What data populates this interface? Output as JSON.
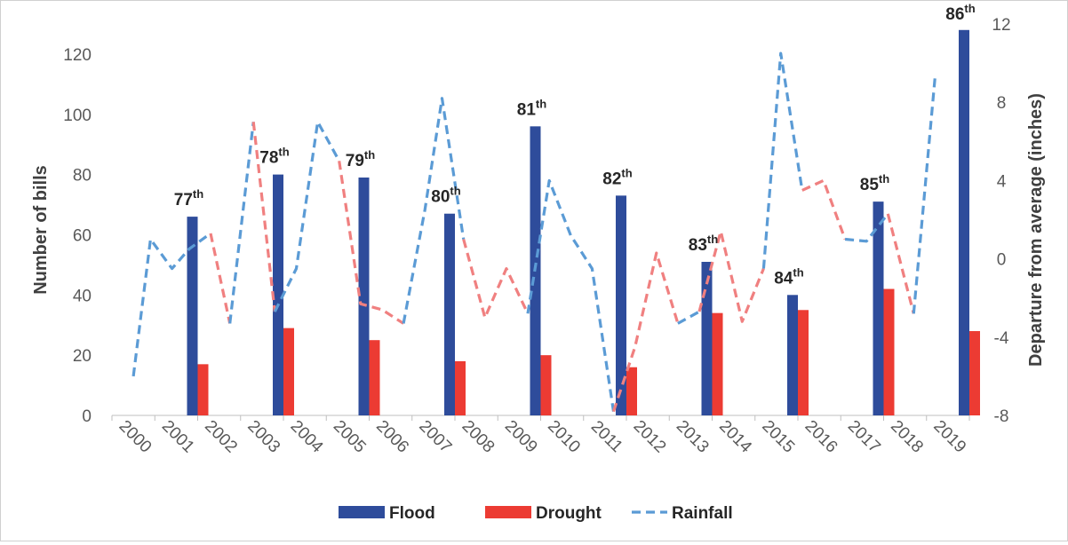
{
  "chart_data": {
    "type": "bar",
    "x": [
      "2000",
      "2001",
      "2002",
      "2003",
      "2004",
      "2005",
      "2006",
      "2007",
      "2008",
      "2009",
      "2010",
      "2011",
      "2012",
      "2013",
      "2014",
      "2015",
      "2016",
      "2017",
      "2018",
      "2019"
    ],
    "ylabel": "Number of bills",
    "y2label": "Departure from average (inches)",
    "ylim": [
      0,
      130
    ],
    "y_ticks": [
      "0",
      "20",
      "40",
      "60",
      "80",
      "100",
      "120"
    ],
    "y2lim": [
      -8,
      12
    ],
    "y2_ticks": [
      "-8",
      "-4",
      "0",
      "4",
      "8",
      "12"
    ],
    "grid": false,
    "legend_position": "bottom",
    "colors": {
      "flood": "#2e4c9b",
      "drought": "#ec3b33",
      "rainfall_blue": "#5b9bd5",
      "rainfall_red": "#f08080"
    },
    "bar_series": [
      {
        "name": "Flood",
        "points": [
          {
            "x": "2001",
            "y": 66
          },
          {
            "x": "2003",
            "y": 80
          },
          {
            "x": "2005",
            "y": 79
          },
          {
            "x": "2007",
            "y": 67
          },
          {
            "x": "2009",
            "y": 96
          },
          {
            "x": "2011",
            "y": 73
          },
          {
            "x": "2013",
            "y": 51
          },
          {
            "x": "2015",
            "y": 40
          },
          {
            "x": "2017",
            "y": 71
          },
          {
            "x": "2019",
            "y": 128
          }
        ]
      },
      {
        "name": "Drought",
        "points": [
          {
            "x": "2001",
            "y": 17
          },
          {
            "x": "2003",
            "y": 29
          },
          {
            "x": "2005",
            "y": 25
          },
          {
            "x": "2007",
            "y": 18
          },
          {
            "x": "2009",
            "y": 20
          },
          {
            "x": "2011",
            "y": 16
          },
          {
            "x": "2013",
            "y": 34
          },
          {
            "x": "2015",
            "y": 35
          },
          {
            "x": "2017",
            "y": 42
          },
          {
            "x": "2019",
            "y": 28
          }
        ]
      }
    ],
    "line_series": {
      "name": "Rainfall",
      "axis": "right",
      "points": [
        {
          "x": 2000.0,
          "y": -6.0
        },
        {
          "x": 2000.4,
          "y": 1.0
        },
        {
          "x": 2000.9,
          "y": -0.5
        },
        {
          "x": 2001.3,
          "y": 0.5
        },
        {
          "x": 2001.8,
          "y": 1.3
        },
        {
          "x": 2002.25,
          "y": -3.3
        },
        {
          "x": 2002.8,
          "y": 7.0
        },
        {
          "x": 2003.3,
          "y": -2.7
        },
        {
          "x": 2003.8,
          "y": -0.5
        },
        {
          "x": 2004.3,
          "y": 7.0
        },
        {
          "x": 2004.8,
          "y": 5.0
        },
        {
          "x": 2005.3,
          "y": -2.3
        },
        {
          "x": 2005.8,
          "y": -2.6
        },
        {
          "x": 2006.3,
          "y": -3.3
        },
        {
          "x": 2006.8,
          "y": 2.5
        },
        {
          "x": 2007.2,
          "y": 8.2
        },
        {
          "x": 2007.7,
          "y": 1.0
        },
        {
          "x": 2008.2,
          "y": -3.0
        },
        {
          "x": 2008.7,
          "y": -0.5
        },
        {
          "x": 2009.2,
          "y": -2.8
        },
        {
          "x": 2009.7,
          "y": 4.0
        },
        {
          "x": 2010.2,
          "y": 1.2
        },
        {
          "x": 2010.7,
          "y": -0.5
        },
        {
          "x": 2011.2,
          "y": -7.8
        },
        {
          "x": 2011.7,
          "y": -4.5
        },
        {
          "x": 2012.2,
          "y": 0.3
        },
        {
          "x": 2012.7,
          "y": -3.3
        },
        {
          "x": 2013.2,
          "y": -2.7
        },
        {
          "x": 2013.7,
          "y": 1.4
        },
        {
          "x": 2014.2,
          "y": -3.2
        },
        {
          "x": 2014.7,
          "y": -0.5
        },
        {
          "x": 2015.1,
          "y": 10.5
        },
        {
          "x": 2015.6,
          "y": 3.5
        },
        {
          "x": 2016.1,
          "y": 4.0
        },
        {
          "x": 2016.6,
          "y": 1.0
        },
        {
          "x": 2017.1,
          "y": 0.9
        },
        {
          "x": 2017.6,
          "y": 2.3
        },
        {
          "x": 2018.2,
          "y": -2.8
        },
        {
          "x": 2018.7,
          "y": 9.3
        }
      ],
      "segments": [
        {
          "from": 0,
          "to": 4,
          "color": "blue"
        },
        {
          "from": 4,
          "to": 5,
          "color": "red"
        },
        {
          "from": 5,
          "to": 6,
          "color": "blue"
        },
        {
          "from": 6,
          "to": 7,
          "color": "red"
        },
        {
          "from": 7,
          "to": 10,
          "color": "blue"
        },
        {
          "from": 10,
          "to": 13,
          "color": "red"
        },
        {
          "from": 13,
          "to": 16,
          "color": "blue"
        },
        {
          "from": 16,
          "to": 19,
          "color": "red"
        },
        {
          "from": 19,
          "to": 23,
          "color": "blue"
        },
        {
          "from": 23,
          "to": 26,
          "color": "red"
        },
        {
          "from": 26,
          "to": 27,
          "color": "blue"
        },
        {
          "from": 27,
          "to": 30,
          "color": "red"
        },
        {
          "from": 30,
          "to": 32,
          "color": "blue"
        },
        {
          "from": 32,
          "to": 34,
          "color": "red"
        },
        {
          "from": 34,
          "to": 36,
          "color": "blue"
        },
        {
          "from": 36,
          "to": 37,
          "color": "red"
        },
        {
          "from": 37,
          "to": 38,
          "color": "blue"
        }
      ]
    },
    "annotations": [
      {
        "x": "2001",
        "y": 66,
        "text": "77",
        "sup": "th"
      },
      {
        "x": "2003",
        "y": 80,
        "text": "78",
        "sup": "th"
      },
      {
        "x": "2005",
        "y": 79,
        "text": "79",
        "sup": "th"
      },
      {
        "x": "2007",
        "y": 67,
        "text": "80",
        "sup": "th"
      },
      {
        "x": "2009",
        "y": 96,
        "text": "81",
        "sup": "th"
      },
      {
        "x": "2011",
        "y": 73,
        "text": "82",
        "sup": "th"
      },
      {
        "x": "2013",
        "y": 51,
        "text": "83",
        "sup": "th"
      },
      {
        "x": "2015",
        "y": 40,
        "text": "84",
        "sup": "th"
      },
      {
        "x": "2017",
        "y": 71,
        "text": "85",
        "sup": "th"
      },
      {
        "x": "2019",
        "y": 128,
        "text": "86",
        "sup": "th"
      }
    ],
    "legend": [
      {
        "key": "flood",
        "label": "Flood"
      },
      {
        "key": "drought",
        "label": "Drought"
      },
      {
        "key": "rainfall",
        "label": "Rainfall"
      }
    ]
  }
}
